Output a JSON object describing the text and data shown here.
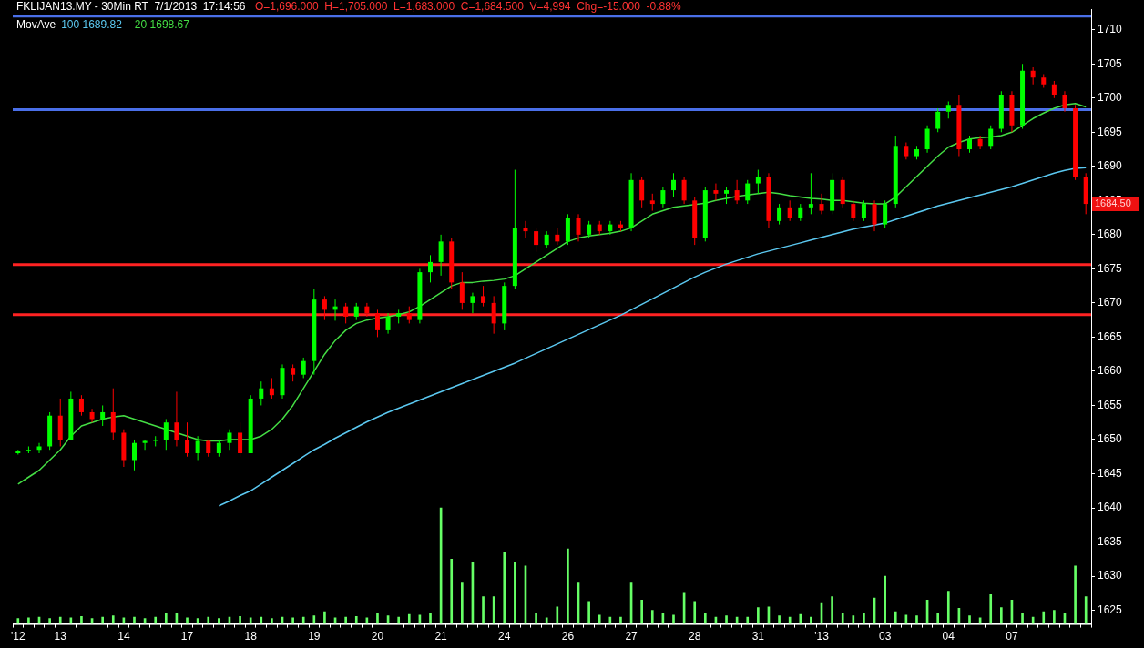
{
  "chart_data": {
    "type": "candlestick",
    "title": "FKLIJAN13.MY - 30Min RT  7/1/2013  17:14:56",
    "subtitle": "O=1,696.000  H=1,705.000  L=1,683.000  C=1,684.500  V=4,994  Chg=-15.000  -0.88%",
    "legend_title": "MovAve",
    "legend": "top left",
    "categories": [
      "'12",
      null,
      null,
      null,
      "13",
      null,
      null,
      null,
      null,
      null,
      "14",
      null,
      null,
      null,
      null,
      null,
      "17",
      null,
      null,
      null,
      null,
      null,
      "18",
      null,
      null,
      null,
      null,
      null,
      "19",
      null,
      null,
      null,
      null,
      null,
      "20",
      null,
      null,
      null,
      null,
      null,
      "21",
      null,
      null,
      null,
      null,
      null,
      "24",
      null,
      null,
      null,
      null,
      null,
      "26",
      null,
      null,
      null,
      null,
      null,
      "27",
      null,
      null,
      null,
      null,
      null,
      "28",
      null,
      null,
      null,
      null,
      null,
      "31",
      null,
      null,
      null,
      null,
      null,
      "'13",
      null,
      null,
      null,
      null,
      null,
      "03",
      null,
      null,
      null,
      null,
      null,
      "04",
      null,
      null,
      null,
      null,
      null,
      "07",
      null,
      null,
      null,
      null,
      null,
      null,
      null
    ],
    "ohlc": [
      [
        1648,
        1648.5,
        1647.8,
        1648.3
      ],
      [
        1648.3,
        1649,
        1648,
        1648.5
      ],
      [
        1648.5,
        1649.5,
        1648,
        1649
      ],
      [
        1649,
        1654,
        1648.5,
        1653.5
      ],
      [
        1653.5,
        1656,
        1649,
        1650
      ],
      [
        1650,
        1657,
        1650,
        1656
      ],
      [
        1656,
        1656.5,
        1653.5,
        1654
      ],
      [
        1654,
        1654.5,
        1652.5,
        1653
      ],
      [
        1653,
        1655,
        1652,
        1654
      ],
      [
        1654,
        1657.5,
        1650,
        1651
      ],
      [
        1651,
        1651.5,
        1646,
        1647
      ],
      [
        1647,
        1650,
        1645.5,
        1649.5
      ],
      [
        1649.5,
        1650,
        1648.5,
        1649.8
      ],
      [
        1649.8,
        1650.5,
        1649,
        1650
      ],
      [
        1650,
        1653,
        1648.5,
        1652.5
      ],
      [
        1652.5,
        1657,
        1649,
        1650
      ],
      [
        1650,
        1652.5,
        1647.5,
        1648
      ],
      [
        1648,
        1650.5,
        1647,
        1649.8
      ],
      [
        1649.8,
        1650,
        1647.5,
        1648
      ],
      [
        1648,
        1650,
        1647.5,
        1649.5
      ],
      [
        1649.5,
        1651.5,
        1648.5,
        1651
      ],
      [
        1651,
        1652.5,
        1647.5,
        1648
      ],
      [
        1648,
        1656.5,
        1648,
        1656
      ],
      [
        1656,
        1658.5,
        1655,
        1657.5
      ],
      [
        1657.5,
        1659,
        1656,
        1656.5
      ],
      [
        1656.5,
        1661,
        1656,
        1660.5
      ],
      [
        1660.5,
        1661,
        1658.5,
        1659.5
      ],
      [
        1659.5,
        1662,
        1659,
        1661.5
      ],
      [
        1661.5,
        1672,
        1659.5,
        1670.5
      ],
      [
        1670.5,
        1671,
        1667.5,
        1669
      ],
      [
        1669,
        1670.5,
        1667.4,
        1669.5
      ],
      [
        1669.5,
        1670,
        1667,
        1668
      ],
      [
        1668,
        1670,
        1667.5,
        1669.5
      ],
      [
        1669.5,
        1670,
        1668,
        1668.5
      ],
      [
        1668.5,
        1669,
        1665,
        1666
      ],
      [
        1666,
        1668.5,
        1665.5,
        1668
      ],
      [
        1668,
        1669,
        1667,
        1668.5
      ],
      [
        1668.5,
        1669.5,
        1667,
        1667.5
      ],
      [
        1667.5,
        1675,
        1667,
        1674.5
      ],
      [
        1674.5,
        1677,
        1673,
        1676
      ],
      [
        1676,
        1680,
        1674,
        1679
      ],
      [
        1679,
        1679.5,
        1672,
        1673
      ],
      [
        1673,
        1674.5,
        1669,
        1670
      ],
      [
        1670,
        1671.5,
        1668.5,
        1671
      ],
      [
        1671,
        1672.5,
        1669.5,
        1670
      ],
      [
        1670,
        1671,
        1665.5,
        1667
      ],
      [
        1667,
        1673,
        1666,
        1672.5
      ],
      [
        1672.5,
        1689.5,
        1672,
        1681
      ],
      [
        1681,
        1682,
        1679.5,
        1680.5
      ],
      [
        1680.5,
        1681,
        1677.5,
        1678.5
      ],
      [
        1678.5,
        1680.5,
        1678,
        1680
      ],
      [
        1680,
        1681,
        1678.5,
        1679
      ],
      [
        1679,
        1683,
        1678.5,
        1682.5
      ],
      [
        1682.5,
        1683,
        1679,
        1680
      ],
      [
        1680,
        1682,
        1679.5,
        1681.5
      ],
      [
        1681.5,
        1682,
        1680,
        1680.5
      ],
      [
        1680.5,
        1682,
        1680,
        1681.5
      ],
      [
        1681.5,
        1682,
        1680.5,
        1681
      ],
      [
        1681,
        1689,
        1680.5,
        1688
      ],
      [
        1688,
        1688.5,
        1684,
        1685
      ],
      [
        1685,
        1686,
        1683.5,
        1684.5
      ],
      [
        1684.5,
        1687,
        1684,
        1686.5
      ],
      [
        1686.5,
        1689,
        1685.5,
        1688
      ],
      [
        1688,
        1688.5,
        1684.5,
        1685
      ],
      [
        1685,
        1685.5,
        1678.5,
        1679.5
      ],
      [
        1679.5,
        1687,
        1679,
        1686.5
      ],
      [
        1686.5,
        1687.5,
        1685,
        1686
      ],
      [
        1686,
        1687,
        1684.5,
        1686.5
      ],
      [
        1686.5,
        1688,
        1684.5,
        1685
      ],
      [
        1685,
        1688,
        1684.5,
        1687.5
      ],
      [
        1687.5,
        1689.5,
        1686,
        1688.5
      ],
      [
        1688.5,
        1689,
        1681,
        1682
      ],
      [
        1682,
        1684.5,
        1681.5,
        1684
      ],
      [
        1684,
        1685,
        1682,
        1682.5
      ],
      [
        1682.5,
        1684.5,
        1682,
        1684
      ],
      [
        1684,
        1689,
        1683,
        1684.5
      ],
      [
        1684.5,
        1686,
        1683,
        1683.5
      ],
      [
        1683.5,
        1689,
        1683,
        1688
      ],
      [
        1688,
        1688.5,
        1684,
        1684.5
      ],
      [
        1684.5,
        1685,
        1682,
        1682.5
      ],
      [
        1682.5,
        1685,
        1682,
        1684.5
      ],
      [
        1684.5,
        1685,
        1680.5,
        1681.5
      ],
      [
        1681.5,
        1685,
        1681,
        1684.5
      ],
      [
        1684.5,
        1694.5,
        1684,
        1693
      ],
      [
        1693,
        1693.5,
        1691,
        1691.5
      ],
      [
        1691.5,
        1693,
        1691,
        1692.5
      ],
      [
        1692.5,
        1696,
        1692,
        1695.5
      ],
      [
        1695.5,
        1698.5,
        1695,
        1698
      ],
      [
        1698,
        1699.5,
        1697,
        1699
      ],
      [
        1699,
        1700.5,
        1691.5,
        1692.5
      ],
      [
        1692.5,
        1694.5,
        1692,
        1694
      ],
      [
        1694,
        1694.5,
        1692.5,
        1693
      ],
      [
        1693,
        1696,
        1692.5,
        1695.5
      ],
      [
        1695.5,
        1701,
        1695,
        1700.5
      ],
      [
        1700.5,
        1701,
        1695,
        1696
      ],
      [
        1696,
        1705,
        1695.5,
        1704
      ],
      [
        1704,
        1704.5,
        1702,
        1703
      ],
      [
        1703,
        1703.5,
        1701.5,
        1702
      ],
      [
        1702,
        1702.5,
        1700,
        1700.5
      ],
      [
        1700.5,
        1701,
        1698,
        1698.5
      ],
      [
        1698.5,
        1699,
        1688,
        1688.5
      ],
      [
        1688.5,
        1689,
        1683,
        1684.5
      ]
    ],
    "colors": [
      "#00ff00",
      "#00ff00",
      "#00ff00",
      "#00ff00",
      "#ff0000",
      "#00ff00",
      "#ff0000",
      "#ff0000",
      "#00ff00",
      "#ff0000",
      "#ff0000",
      "#00ff00",
      "#00ff00",
      "#00ff00",
      "#00ff00",
      "#ff0000",
      "#ff0000",
      "#00ff00",
      "#ff0000",
      "#00ff00",
      "#00ff00",
      "#ff0000",
      "#00ff00",
      "#00ff00",
      "#ff0000",
      "#00ff00",
      "#ff0000",
      "#00ff00",
      "#00ff00",
      "#ff0000",
      "#00ff00",
      "#ff0000",
      "#00ff00",
      "#ff0000",
      "#ff0000",
      "#00ff00",
      "#00ff00",
      "#ff0000",
      "#00ff00",
      "#00ff00",
      "#00ff00",
      "#ff0000",
      "#ff0000",
      "#00ff00",
      "#ff0000",
      "#ff0000",
      "#00ff00",
      "#00ff00",
      "#ff0000",
      "#ff0000",
      "#00ff00",
      "#ff0000",
      "#00ff00",
      "#ff0000",
      "#00ff00",
      "#ff0000",
      "#00ff00",
      "#ff0000",
      "#00ff00",
      "#ff0000",
      "#ff0000",
      "#00ff00",
      "#00ff00",
      "#ff0000",
      "#ff0000",
      "#00ff00",
      "#ff0000",
      "#00ff00",
      "#ff0000",
      "#00ff00",
      "#00ff00",
      "#ff0000",
      "#00ff00",
      "#ff0000",
      "#00ff00",
      "#00ff00",
      "#ff0000",
      "#00ff00",
      "#ff0000",
      "#ff0000",
      "#00ff00",
      "#ff0000",
      "#00ff00",
      "#00ff00",
      "#ff0000",
      "#00ff00",
      "#00ff00",
      "#00ff00",
      "#00ff00",
      "#ff0000",
      "#00ff00",
      "#ff0000",
      "#00ff00",
      "#00ff00",
      "#ff0000",
      "#00ff00",
      "#ff0000",
      "#ff0000",
      "#ff0000",
      "#ff0000",
      "#ff0000",
      "#ff0000"
    ],
    "series": [
      {
        "name": "100 1689.82",
        "type": "line",
        "color": "#5bc8f0",
        "values": [
          null,
          null,
          null,
          null,
          null,
          null,
          null,
          null,
          null,
          null,
          null,
          null,
          null,
          null,
          null,
          null,
          null,
          null,
          null,
          1640.3,
          1641,
          1641.8,
          1642.5,
          1643.5,
          1644.5,
          1645.5,
          1646.5,
          1647.5,
          1648.5,
          1649.3,
          1650.2,
          1651,
          1651.8,
          1652.6,
          1653.3,
          1654,
          1654.6,
          1655.2,
          1655.8,
          1656.4,
          1657,
          1657.6,
          1658.2,
          1658.8,
          1659.4,
          1660,
          1660.6,
          1661.2,
          1661.9,
          1662.6,
          1663.3,
          1664,
          1664.7,
          1665.4,
          1666.1,
          1666.8,
          1667.5,
          1668.2,
          1669,
          1669.8,
          1670.6,
          1671.4,
          1672.2,
          1673,
          1673.8,
          1674.5,
          1675.1,
          1675.7,
          1676.2,
          1676.7,
          1677.2,
          1677.6,
          1678,
          1678.4,
          1678.8,
          1679.2,
          1679.6,
          1680,
          1680.4,
          1680.8,
          1681.1,
          1681.4,
          1681.7,
          1682.2,
          1682.7,
          1683.2,
          1683.7,
          1684.2,
          1684.6,
          1685,
          1685.4,
          1685.8,
          1686.2,
          1686.6,
          1687,
          1687.5,
          1688,
          1688.5,
          1689,
          1689.4,
          1689.7,
          1689.8
        ]
      },
      {
        "name": "20 1698.67",
        "type": "line",
        "color": "#44dd44",
        "values": [
          1643.5,
          1644.5,
          1645.5,
          1647,
          1648.5,
          1650.5,
          1652,
          1652.5,
          1653,
          1653.3,
          1653.5,
          1653,
          1652.5,
          1652,
          1651.5,
          1651,
          1650.5,
          1650,
          1649.8,
          1649.8,
          1650,
          1650,
          1650,
          1650.5,
          1651.5,
          1653,
          1655,
          1657.5,
          1660,
          1662.5,
          1664.5,
          1666,
          1667,
          1667.5,
          1667.8,
          1668,
          1668.3,
          1668.7,
          1669.5,
          1670.5,
          1671.5,
          1672.5,
          1673,
          1673,
          1673.2,
          1673.3,
          1673.5,
          1674,
          1675,
          1676,
          1677,
          1678,
          1679,
          1679.5,
          1679.8,
          1680,
          1680.2,
          1680.5,
          1681,
          1682,
          1683,
          1683.5,
          1684,
          1684.2,
          1684.4,
          1684.6,
          1685,
          1685.3,
          1685.6,
          1685.8,
          1686,
          1686.2,
          1686,
          1685.7,
          1685.5,
          1685.3,
          1685.2,
          1685,
          1685,
          1684.8,
          1684.6,
          1684.5,
          1684.5,
          1685.5,
          1687,
          1688.5,
          1690,
          1691.5,
          1692.8,
          1693.5,
          1694,
          1694.2,
          1694.3,
          1694.5,
          1695,
          1696,
          1697,
          1697.8,
          1698.5,
          1699,
          1699.2,
          1698.7
        ]
      },
      {
        "type": "bar",
        "color": "#66ff66",
        "values": [
          1623.8,
          1623.9,
          1624,
          1623.8,
          1624,
          1623.9,
          1624.1,
          1623.8,
          1624,
          1624.2,
          1623.9,
          1624,
          1623.8,
          1624,
          1624.5,
          1624.6,
          1623.9,
          1623.8,
          1624,
          1623.8,
          1624,
          1624.1,
          1623.9,
          1624,
          1623.8,
          1624,
          1623.9,
          1624,
          1624.2,
          1624.8,
          1623.9,
          1624,
          1624.1,
          1623.9,
          1624.6,
          1624.2,
          1624,
          1624.4,
          1624.3,
          1624.5,
          1640,
          1632.5,
          1629,
          1632,
          1627,
          1627,
          1633.5,
          1632,
          1631.5,
          1624.5,
          1623.9,
          1625.5,
          1634,
          1629,
          1626.3,
          1624.3,
          1624,
          1624,
          1629,
          1626.5,
          1625,
          1624.5,
          1624.3,
          1627.5,
          1626.3,
          1624.5,
          1624,
          1624.2,
          1624,
          1624,
          1625.4,
          1625.5,
          1624.2,
          1624,
          1624.4,
          1624,
          1626,
          1627,
          1624.5,
          1624.2,
          1624.5,
          1626.8,
          1630,
          1624.8,
          1624.3,
          1624.2,
          1626.5,
          1624.6,
          1627.8,
          1625.3,
          1624.2,
          1623.9,
          1627.3,
          1625.4,
          1626.5,
          1624.6,
          1624,
          1624.8,
          1625,
          1624.5,
          1631.5,
          1627
        ]
      }
    ],
    "ylim": [
      1623,
      1713
    ],
    "yticks": [
      1625,
      1630,
      1635,
      1640,
      1645,
      1650,
      1655,
      1660,
      1665,
      1670,
      1675,
      1680,
      1685,
      1690,
      1695,
      1700,
      1705,
      1710
    ],
    "ref_lines": [
      {
        "axis": "y",
        "value": 1712,
        "color": "#4a6fe8"
      },
      {
        "axis": "y",
        "value": 1698.3,
        "color": "#4a6fe8"
      },
      {
        "axis": "y",
        "value": 1675.6,
        "color": "#ff2222"
      },
      {
        "axis": "y",
        "value": 1668.3,
        "color": "#ff2222"
      }
    ],
    "annotations": [
      "1684.50"
    ]
  }
}
